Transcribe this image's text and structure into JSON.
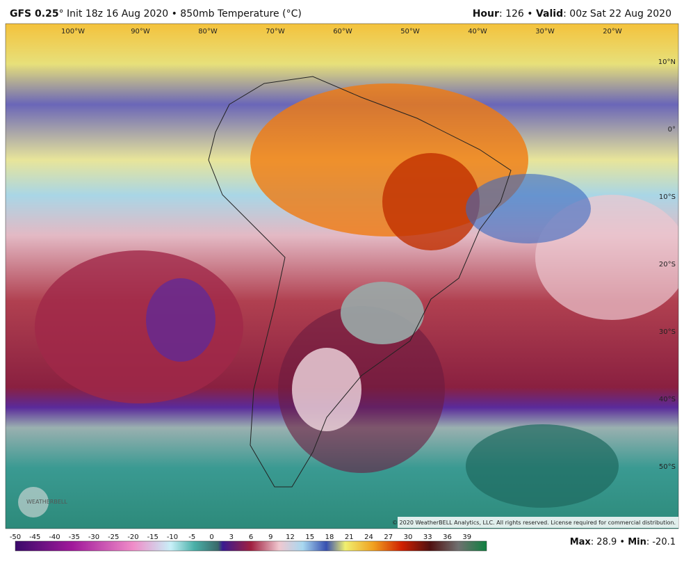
{
  "header": {
    "model": "GFS 0.25",
    "description": "° Init 18z 16 Aug 2020 • 850mb Temperature (°C)",
    "hour_label": "Hour",
    "hour_value": ": 126 • ",
    "valid_label": "Valid",
    "valid_value": ": 00z Sat 22 Aug 2020"
  },
  "map": {
    "longitudes": [
      "100°W",
      "90°W",
      "80°W",
      "70°W",
      "60°W",
      "50°W",
      "40°W",
      "30°W",
      "20°W"
    ],
    "latitudes": [
      "10°N",
      "0°",
      "10°S",
      "20°S",
      "30°S",
      "40°S",
      "50°S"
    ],
    "copyright": "© 2020 WeatherBELL Analytics, LLC. All rights reserved. License required for commercial distribution.",
    "logo": "WEATHERBELL"
  },
  "colorbar": {
    "ticks": [
      -50,
      -45,
      -40,
      -35,
      -30,
      -25,
      -20,
      -15,
      -10,
      -5,
      0,
      3,
      6,
      9,
      12,
      15,
      18,
      21,
      24,
      27,
      30,
      33,
      36,
      39
    ]
  },
  "footer": {
    "max_label": "Max",
    "max_value": ": 28.9 • ",
    "min_label": "Min",
    "min_value": ": -20.1"
  }
}
